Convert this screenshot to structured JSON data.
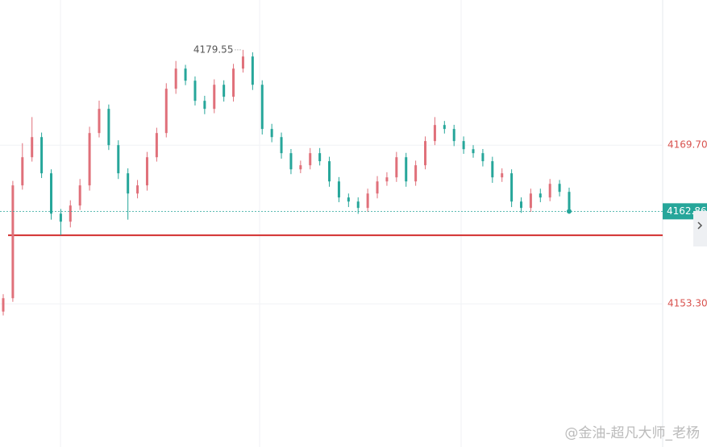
{
  "chart_data": {
    "type": "candlestick",
    "up_color": "#e0707a",
    "down_color": "#26a69a",
    "open": [
      4152.5,
      4153.88,
      4165.54,
      4168.45,
      4170.53,
      4166.79,
      4162.62,
      4161.79,
      4163.46,
      4165.54,
      4170.95,
      4173.45,
      4169.7,
      4166.79,
      4164.7,
      4165.54,
      4168.45,
      4170.95,
      4175.53,
      4177.61,
      4176.36,
      4174.28,
      4173.45,
      4175.94,
      4174.7,
      4177.61,
      4178.86,
      4175.94,
      4171.37,
      4170.53,
      4168.87,
      4167.2,
      4167.62,
      4168.87,
      4168.04,
      4165.95,
      4164.29,
      4163.87,
      4163.21,
      4164.7,
      4165.95,
      4166.37,
      4168.45,
      4165.95,
      4167.62,
      4170.12,
      4171.78,
      4171.37,
      4170.12,
      4169.28,
      4168.87,
      4168.04,
      4166.37,
      4166.79,
      4163.87,
      4163.21,
      4164.7,
      4164.29,
      4165.7,
      4164.87
    ],
    "high": [
      4154.3,
      4166.0,
      4169.9,
      4172.6,
      4171.0,
      4167.2,
      4163.1,
      4164.0,
      4166.2,
      4171.6,
      4174.3,
      4173.9,
      4170.2,
      4167.3,
      4166.1,
      4169.0,
      4171.5,
      4176.1,
      4178.4,
      4178.0,
      4176.8,
      4174.8,
      4176.5,
      4176.4,
      4178.1,
      4179.55,
      4179.3,
      4176.4,
      4171.9,
      4171.0,
      4169.3,
      4168.1,
      4169.4,
      4169.4,
      4168.5,
      4166.4,
      4164.7,
      4164.3,
      4165.2,
      4166.5,
      4166.9,
      4169.0,
      4168.9,
      4168.1,
      4170.6,
      4172.6,
      4172.2,
      4171.8,
      4170.6,
      4169.7,
      4169.3,
      4168.5,
      4167.3,
      4167.2,
      4164.3,
      4165.2,
      4165.2,
      4166.2,
      4166.1,
      4165.3
    ],
    "low": [
      4152.1,
      4153.5,
      4165.1,
      4168.0,
      4166.3,
      4162.0,
      4160.4,
      4161.2,
      4163.0,
      4165.0,
      4170.5,
      4169.2,
      4166.2,
      4162.0,
      4164.2,
      4165.0,
      4168.0,
      4170.5,
      4175.0,
      4175.9,
      4173.8,
      4172.9,
      4173.0,
      4174.2,
      4174.2,
      4177.2,
      4175.4,
      4170.8,
      4170.0,
      4168.3,
      4166.7,
      4166.8,
      4167.2,
      4167.6,
      4165.4,
      4163.8,
      4163.3,
      4162.6,
      4162.8,
      4164.2,
      4165.5,
      4165.9,
      4165.4,
      4165.5,
      4167.2,
      4169.7,
      4170.9,
      4169.6,
      4168.8,
      4168.4,
      4167.5,
      4165.8,
      4165.9,
      4163.3,
      4162.7,
      4162.8,
      4163.8,
      4163.9,
      4164.4,
      4162.6
    ],
    "close": [
      4153.88,
      4165.54,
      4168.45,
      4170.53,
      4166.79,
      4162.62,
      4161.79,
      4163.46,
      4165.54,
      4170.95,
      4173.45,
      4169.7,
      4166.79,
      4164.7,
      4165.54,
      4168.45,
      4170.95,
      4175.53,
      4177.61,
      4176.36,
      4174.28,
      4173.45,
      4175.94,
      4174.7,
      4177.61,
      4178.86,
      4175.94,
      4171.37,
      4170.53,
      4168.87,
      4167.2,
      4167.62,
      4168.87,
      4168.04,
      4165.95,
      4164.29,
      4163.87,
      4163.21,
      4164.7,
      4165.95,
      4166.37,
      4168.45,
      4165.95,
      4167.62,
      4170.12,
      4171.78,
      4171.37,
      4170.12,
      4169.28,
      4168.87,
      4168.04,
      4166.37,
      4166.79,
      4163.87,
      4163.21,
      4164.7,
      4164.29,
      4165.7,
      4164.87,
      4162.86
    ],
    "ylim": [
      4138.5,
      4184.7
    ],
    "yticks": [
      {
        "value": 4153.3,
        "label": "4153.30"
      },
      {
        "value": 4169.7,
        "label": "4169.70"
      }
    ],
    "grid": true,
    "max_index": 25,
    "horizontal_line": {
      "value": 4160.38,
      "color": "#d32f2f"
    },
    "watermark": "@金油-超凡大师_老杨"
  }
}
